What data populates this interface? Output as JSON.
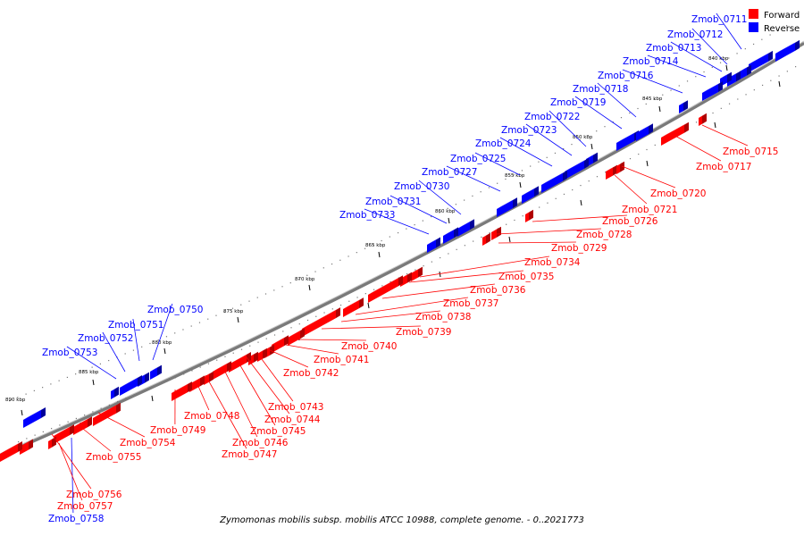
{
  "legend": [
    {
      "label": "Forward",
      "color": "#ff0000"
    },
    {
      "label": "Reverse",
      "color": "#0000ff"
    }
  ],
  "colors": {
    "forward": "#ff0000",
    "reverse": "#0000ff",
    "backbone": "#808080"
  },
  "caption": "Zymomonas mobilis subsp. mobilis ATCC 10988, complete genome. - 0..2021773",
  "scale_labels": [
    "840 kbp",
    "845 kbp",
    "850 kbp",
    "855 kbp",
    "860 kbp",
    "865 kbp",
    "870 kbp",
    "875 kbp",
    "880 kbp",
    "885 kbp",
    "890 kbp"
  ],
  "genes": {
    "reverse": [
      "Zmob_0711",
      "Zmob_0712",
      "Zmob_0713",
      "Zmob_0714",
      "Zmob_0716",
      "Zmob_0718",
      "Zmob_0719",
      "Zmob_0722",
      "Zmob_0723",
      "Zmob_0724",
      "Zmob_0725",
      "Zmob_0727",
      "Zmob_0730",
      "Zmob_0731",
      "Zmob_0733",
      "Zmob_0750",
      "Zmob_0751",
      "Zmob_0752",
      "Zmob_0753",
      "Zmob_0758"
    ],
    "forward": [
      "Zmob_0715",
      "Zmob_0717",
      "Zmob_0720",
      "Zmob_0721",
      "Zmob_0726",
      "Zmob_0728",
      "Zmob_0729",
      "Zmob_0734",
      "Zmob_0735",
      "Zmob_0736",
      "Zmob_0737",
      "Zmob_0738",
      "Zmob_0739",
      "Zmob_0740",
      "Zmob_0741",
      "Zmob_0742",
      "Zmob_0743",
      "Zmob_0744",
      "Zmob_0745",
      "Zmob_0746",
      "Zmob_0747",
      "Zmob_0748",
      "Zmob_0749",
      "Zmob_0754",
      "Zmob_0755",
      "Zmob_0756",
      "Zmob_0757"
    ]
  }
}
